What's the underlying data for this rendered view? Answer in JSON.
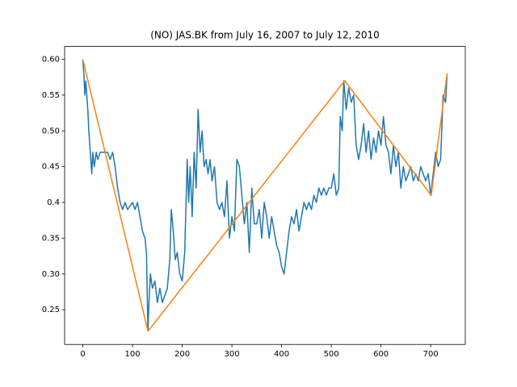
{
  "chart_data": {
    "type": "line",
    "title": "(NO) JAS.BK from July 16, 2007 to July 12, 2010",
    "xlim": [
      -36.65,
      769.65
    ],
    "xticks": [
      0,
      100,
      200,
      300,
      400,
      500,
      600,
      700
    ],
    "ylim": [
      0.2015,
      0.618
    ],
    "yticks": [
      0.25,
      {
        "value": 0.3,
        "label": "0.30"
      },
      0.35,
      0.4,
      0.45,
      {
        "value": 0.5,
        "label": "0.50"
      },
      0.55,
      {
        "value": 0.6,
        "label": "0.60"
      }
    ],
    "series": [
      {
        "color": "#1f77b4",
        "x": [
          0,
          2,
          4,
          6,
          8,
          10,
          12,
          15,
          18,
          20,
          23,
          27,
          30,
          35,
          40,
          50,
          55,
          60,
          65,
          70,
          75,
          80,
          85,
          90,
          100,
          105,
          110,
          115,
          120,
          125,
          128,
          131,
          133,
          136,
          140,
          145,
          150,
          155,
          160,
          165,
          170,
          175,
          178,
          182,
          186,
          190,
          195,
          200,
          205,
          210,
          213,
          216,
          220,
          224,
          228,
          232,
          236,
          240,
          244,
          248,
          252,
          256,
          260,
          265,
          270,
          275,
          280,
          285,
          290,
          295,
          300,
          305,
          310,
          315,
          320,
          325,
          330,
          335,
          340,
          345,
          350,
          355,
          360,
          365,
          370,
          375,
          380,
          385,
          390,
          395,
          400,
          405,
          410,
          415,
          420,
          425,
          430,
          435,
          440,
          445,
          450,
          455,
          460,
          465,
          470,
          475,
          480,
          485,
          490,
          495,
          500,
          505,
          510,
          515,
          518,
          522,
          525,
          530,
          535,
          540,
          545,
          550,
          555,
          560,
          565,
          570,
          575,
          580,
          585,
          590,
          595,
          600,
          605,
          610,
          615,
          620,
          625,
          630,
          635,
          640,
          645,
          650,
          655,
          660,
          665,
          670,
          675,
          680,
          685,
          690,
          695,
          700,
          705,
          710,
          715,
          720,
          725,
          730,
          733
        ],
        "values": [
          0.6,
          0.58,
          0.55,
          0.57,
          0.55,
          0.53,
          0.5,
          0.47,
          0.44,
          0.47,
          0.45,
          0.47,
          0.46,
          0.47,
          0.47,
          0.47,
          0.46,
          0.47,
          0.45,
          0.42,
          0.4,
          0.39,
          0.4,
          0.39,
          0.4,
          0.39,
          0.4,
          0.38,
          0.36,
          0.35,
          0.33,
          0.22,
          0.26,
          0.3,
          0.28,
          0.29,
          0.26,
          0.28,
          0.26,
          0.27,
          0.28,
          0.32,
          0.39,
          0.36,
          0.32,
          0.33,
          0.3,
          0.29,
          0.33,
          0.46,
          0.4,
          0.45,
          0.38,
          0.47,
          0.42,
          0.53,
          0.47,
          0.5,
          0.45,
          0.46,
          0.44,
          0.46,
          0.43,
          0.45,
          0.4,
          0.39,
          0.4,
          0.38,
          0.43,
          0.35,
          0.38,
          0.36,
          0.46,
          0.45,
          0.41,
          0.37,
          0.4,
          0.33,
          0.42,
          0.37,
          0.37,
          0.39,
          0.35,
          0.4,
          0.38,
          0.35,
          0.38,
          0.36,
          0.34,
          0.33,
          0.31,
          0.3,
          0.33,
          0.36,
          0.38,
          0.37,
          0.39,
          0.36,
          0.38,
          0.4,
          0.39,
          0.4,
          0.39,
          0.41,
          0.4,
          0.42,
          0.41,
          0.42,
          0.41,
          0.42,
          0.42,
          0.44,
          0.41,
          0.42,
          0.52,
          0.5,
          0.57,
          0.53,
          0.56,
          0.54,
          0.55,
          0.48,
          0.46,
          0.48,
          0.51,
          0.47,
          0.5,
          0.46,
          0.49,
          0.47,
          0.5,
          0.48,
          0.52,
          0.48,
          0.47,
          0.44,
          0.48,
          0.45,
          0.47,
          0.42,
          0.45,
          0.43,
          0.44,
          0.45,
          0.43,
          0.44,
          0.43,
          0.45,
          0.44,
          0.43,
          0.44,
          0.41,
          0.44,
          0.47,
          0.45,
          0.46,
          0.55,
          0.54,
          0.58
        ]
      },
      {
        "color": "#ff7f0e",
        "x": [
          0,
          131,
          527,
          701,
          733
        ],
        "values": [
          0.6,
          0.22,
          0.57,
          0.41,
          0.58
        ]
      }
    ]
  }
}
